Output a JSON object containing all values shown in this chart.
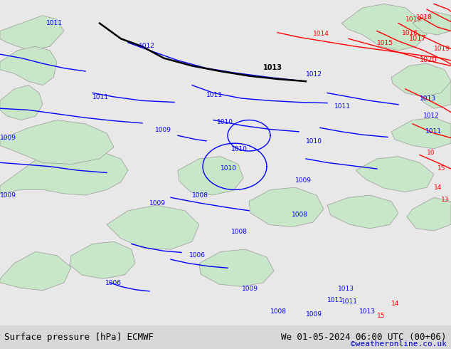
{
  "title_left": "Surface pressure [hPa] ECMWF",
  "title_right": "We 01-05-2024 06:00 UTC (00+06)",
  "copyright": "©weatheronline.co.uk",
  "bg_color": "#e8e8e8",
  "map_color": "#d4d4d4",
  "green_color": "#c8e6c8",
  "bottom_bar_color": "#d8d8d8",
  "bottom_text_color": "#000000",
  "copyright_color": "#0000cc",
  "bottom_bar_height": 0.068,
  "fig_width": 6.34,
  "fig_height": 4.9
}
